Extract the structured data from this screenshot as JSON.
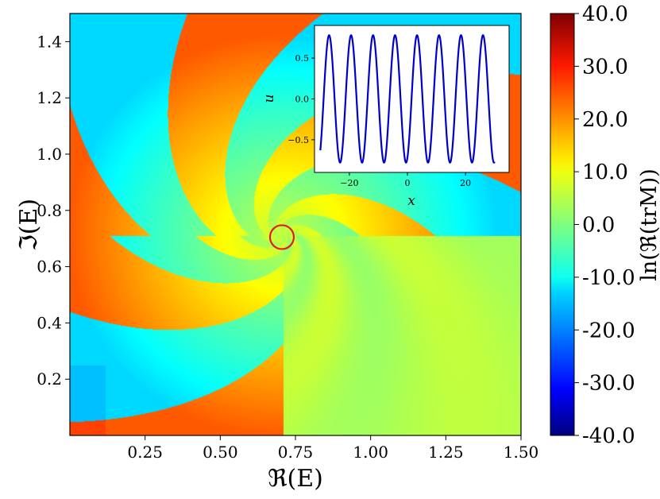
{
  "chart_data": [
    {
      "type": "heatmap",
      "title": "",
      "xlabel": "ℜ(E)",
      "ylabel": "ℑ(E)",
      "xlim": [
        0.0,
        1.5
      ],
      "ylim": [
        0.0,
        1.5
      ],
      "xticks": [
        "0.25",
        "0.50",
        "0.75",
        "1.00",
        "1.25",
        "1.50"
      ],
      "xtick_values": [
        0.25,
        0.5,
        0.75,
        1.0,
        1.25,
        1.5
      ],
      "yticks": [
        "0.2",
        "0.4",
        "0.6",
        "0.8",
        "1.0",
        "1.2",
        "1.4"
      ],
      "ytick_values": [
        0.2,
        0.4,
        0.6,
        0.8,
        1.0,
        1.2,
        1.4
      ],
      "colormap": "jet",
      "colorbar": {
        "label": "ln(ℜ(trM))",
        "range": [
          -40.0,
          40.0
        ],
        "ticks": [
          "40.0",
          "30.0",
          "20.0",
          "10.0",
          "0.0",
          "-10.0",
          "-20.0",
          "-30.0",
          "-40.0"
        ],
        "tick_values": [
          40,
          30,
          20,
          10,
          0,
          -10,
          -20,
          -30,
          -40
        ]
      },
      "highlight_circle": {
        "x": 0.705,
        "y": 0.705,
        "color": "#e31a1c"
      },
      "grid": false
    },
    {
      "type": "line",
      "inset": true,
      "xlabel": "x",
      "ylabel": "u",
      "xlim": [
        -32,
        35
      ],
      "ylim": [
        -0.9,
        0.9
      ],
      "xticks": [
        "−20",
        "0",
        "20"
      ],
      "xtick_values": [
        -20,
        0,
        20
      ],
      "yticks": [
        "0.5",
        "0.0",
        "−0.5"
      ],
      "ytick_values": [
        0.5,
        0.0,
        -0.5
      ],
      "series": [
        {
          "function": "u(x) = 0.78 sin(0.83 (x + 21.3))",
          "x_range": [
            -30,
            30
          ],
          "color": "#0000cc"
        }
      ],
      "grid": false
    }
  ]
}
